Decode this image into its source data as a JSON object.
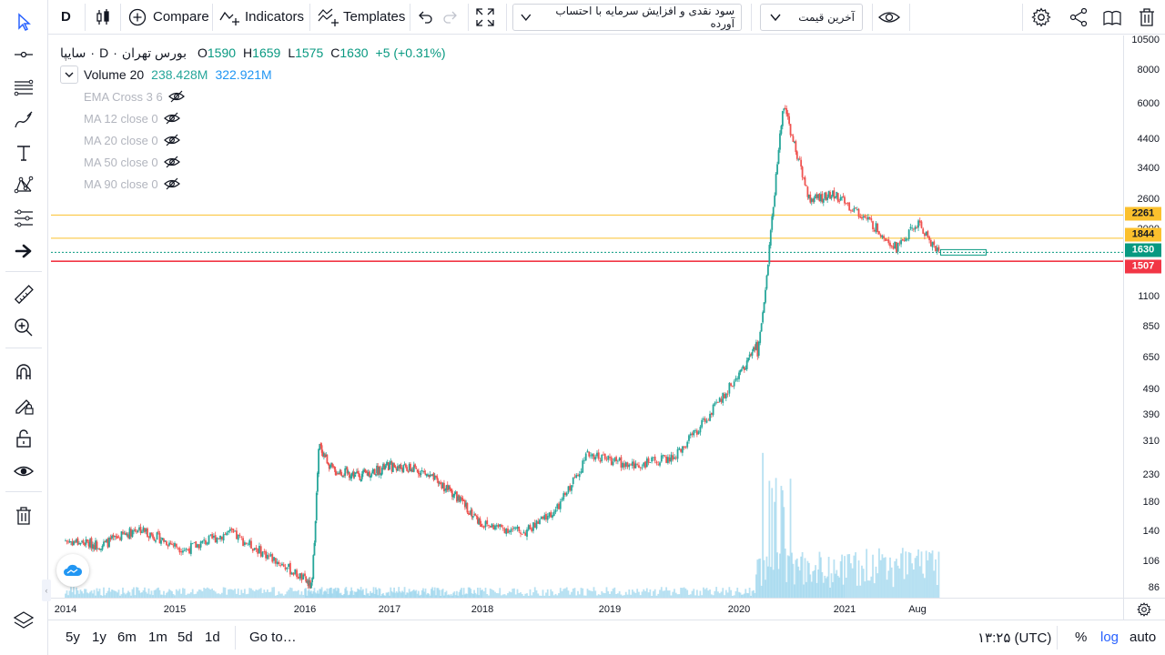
{
  "toolbar": {
    "interval": "D",
    "compare_label": "Compare",
    "indicators_label": "Indicators",
    "templates_label": "Templates",
    "adjustment_select": "سود نقدی و افزایش سرمایه با احتساب آورده",
    "price_type_select": "آخرین قیمت"
  },
  "legend": {
    "symbol": "سایپا",
    "interval": "D",
    "exchange": "بورس تهران",
    "open_label": "O",
    "open": "1590",
    "high_label": "H",
    "high": "1659",
    "low_label": "L",
    "low": "1575",
    "close_label": "C",
    "close": "1630",
    "change": "+5 (+0.31%)",
    "volume_label": "Volume 20",
    "volume_1": "238.428M",
    "volume_2": "322.921M",
    "indicators": [
      "EMA Cross 3 6",
      "MA 12 close 0",
      "MA 20 close 0",
      "MA 50 close 0",
      "MA 90 close 0"
    ]
  },
  "price_axis": {
    "ticks": [
      "10500",
      "8000",
      "6000",
      "4400",
      "3400",
      "2600",
      "2000",
      "1100",
      "850",
      "650",
      "490",
      "390",
      "310",
      "230",
      "180",
      "140",
      "106",
      "86"
    ],
    "labels": [
      {
        "value": "2261",
        "color": "#fbc02d"
      },
      {
        "value": "1844",
        "color": "#fbc02d"
      },
      {
        "value": "1630",
        "color": "#089981"
      },
      {
        "value": "1507",
        "color": "#f23645"
      }
    ]
  },
  "time_axis": {
    "ticks": [
      "2014",
      "2015",
      "2016",
      "2017",
      "2018",
      "2019",
      "2020",
      "2021",
      "Aug"
    ]
  },
  "bottom_bar": {
    "ranges": [
      "5y",
      "1y",
      "6m",
      "1m",
      "5d",
      "1d"
    ],
    "goto": "Go to…",
    "clock": "۱۳:۲۵ (UTC)",
    "percent": "%",
    "log": "log",
    "auto": "auto"
  },
  "colors": {
    "up": "#26a69a",
    "down": "#ef5350",
    "hline_yellow": "#fbc02d",
    "hline_red": "#f23645",
    "hline_green": "#089981",
    "volume": "#7ec8e8",
    "accent": "#2962ff"
  },
  "chart_data": {
    "type": "candlestick",
    "scale": "log",
    "horizontal_lines": [
      2261,
      1844,
      1630,
      1507
    ],
    "series": [
      {
        "name": "price_path",
        "x": [
          "2014-01",
          "2014-05",
          "2014-09",
          "2015-02",
          "2015-06",
          "2015-11",
          "2016-02",
          "2016-03",
          "2016-05",
          "2016-09",
          "2017-01",
          "2017-05",
          "2017-09",
          "2018-01",
          "2018-05",
          "2018-08",
          "2018-11",
          "2019-03",
          "2019-07",
          "2019-10",
          "2020-01",
          "2020-03",
          "2020-03",
          "2020-04",
          "2020-06",
          "2020-09",
          "2020-12",
          "2021-03",
          "2021-06",
          "2021-08",
          "2021-10"
        ],
        "y": [
          130,
          125,
          145,
          120,
          140,
          105,
          86,
          300,
          240,
          230,
          250,
          240,
          200,
          150,
          140,
          170,
          280,
          250,
          270,
          380,
          560,
          720,
          640,
          1200,
          6000,
          2600,
          2700,
          2200,
          1700,
          2100,
          1630
        ]
      }
    ]
  }
}
